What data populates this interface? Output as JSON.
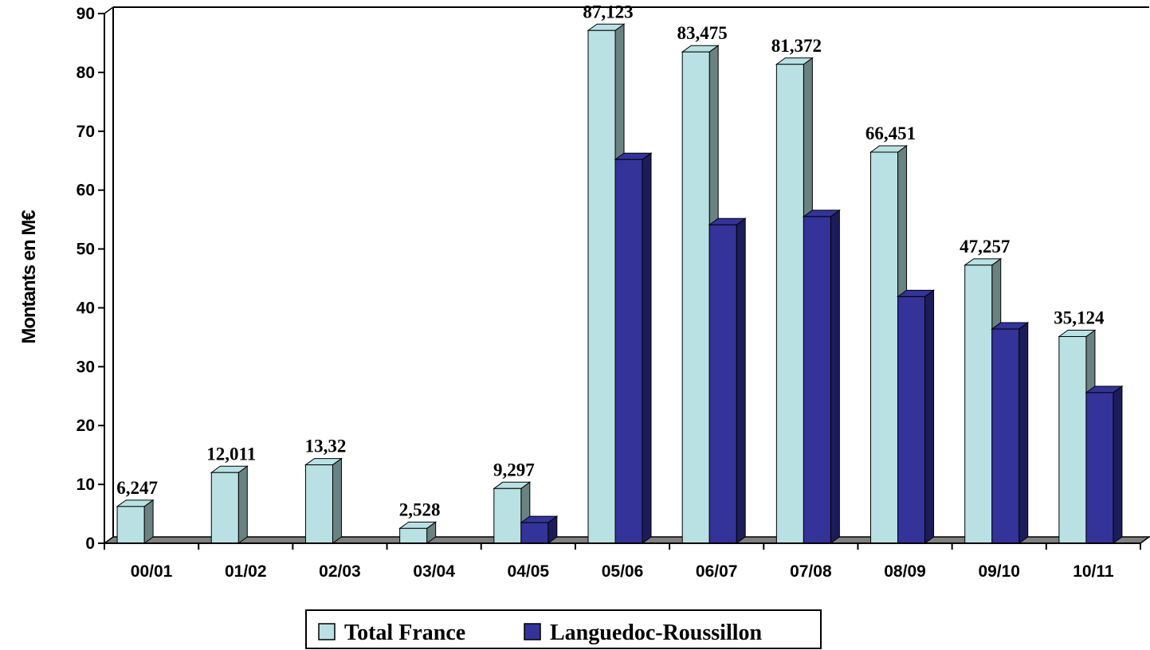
{
  "chart_data": {
    "type": "bar",
    "ylabel": "Montants en M€",
    "xlabel": "",
    "title": "",
    "ylim": [
      0,
      90
    ],
    "yticks": [
      0,
      10,
      20,
      30,
      40,
      50,
      60,
      70,
      80,
      90
    ],
    "categories": [
      "00/01",
      "01/02",
      "02/03",
      "03/04",
      "04/05",
      "05/06",
      "06/07",
      "07/08",
      "08/09",
      "09/10",
      "10/11"
    ],
    "series": [
      {
        "name": "Total France",
        "color": "#b9e1e3",
        "side_color": "#6a8282",
        "values": [
          6.247,
          12.011,
          13.32,
          2.528,
          9.297,
          87.123,
          83.475,
          81.372,
          66.451,
          47.257,
          35.124
        ],
        "labels": [
          "6,247",
          "12,011",
          "13,32",
          "2,528",
          "9,297",
          "87,123",
          "83,475",
          "81,372",
          "66,451",
          "47,257",
          "35,124"
        ]
      },
      {
        "name": "Languedoc-Roussillon",
        "color": "#333399",
        "side_color": "#1c1c5a",
        "values": [
          0,
          0,
          0,
          0,
          3.5,
          65.2,
          54.1,
          55.5,
          41.9,
          36.4,
          25.6
        ]
      }
    ],
    "grid": false,
    "legend_position": "bottom",
    "three_d": true
  }
}
